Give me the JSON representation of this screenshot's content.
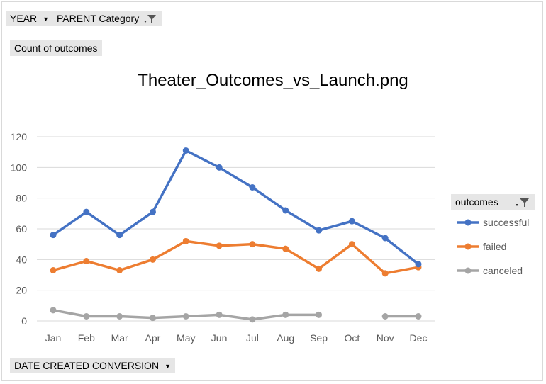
{
  "controls": {
    "year_label": "YEAR",
    "parent_label": "PARENT Category",
    "values_label": "Count of outcomes",
    "legend_field_label": "outcomes",
    "axis_field_label": "DATE CREATED CONVERSION"
  },
  "colors": {
    "successful": "#4472c4",
    "failed": "#ed7d31",
    "canceled": "#a5a5a5",
    "grid": "#d9d9d9",
    "button_bg": "#e6e6e6"
  },
  "chart_data": {
    "type": "line",
    "title": "Theater_Outcomes_vs_Launch.png",
    "xlabel": "",
    "ylabel": "",
    "categories": [
      "Jan",
      "Feb",
      "Mar",
      "Apr",
      "May",
      "Jun",
      "Jul",
      "Aug",
      "Sep",
      "Oct",
      "Nov",
      "Dec"
    ],
    "yticks": [
      "0",
      "20",
      "40",
      "60",
      "80",
      "100",
      "120"
    ],
    "ylim": [
      0,
      120
    ],
    "grid": true,
    "legend_position": "right",
    "series": [
      {
        "name": "successful",
        "values": [
          56,
          71,
          56,
          71,
          111,
          100,
          87,
          72,
          59,
          65,
          54,
          37
        ]
      },
      {
        "name": "failed",
        "values": [
          33,
          39,
          33,
          40,
          52,
          49,
          50,
          47,
          34,
          50,
          31,
          35
        ]
      },
      {
        "name": "canceled",
        "values": [
          7,
          3,
          3,
          2,
          3,
          4,
          1,
          4,
          4,
          null,
          3,
          3
        ]
      }
    ]
  }
}
